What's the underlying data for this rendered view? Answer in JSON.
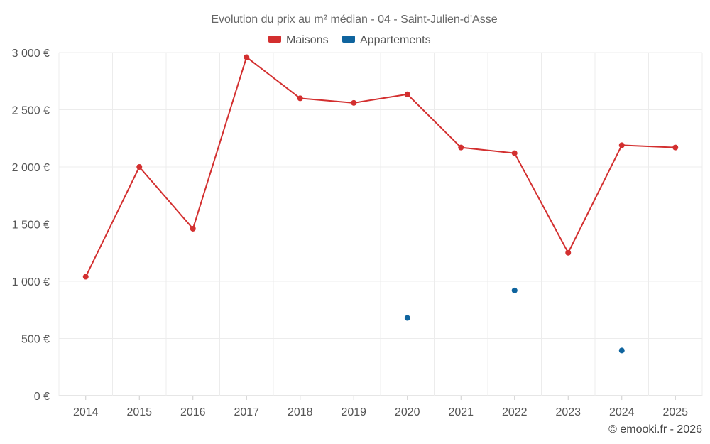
{
  "chart_data": {
    "type": "line",
    "title": "Evolution du prix au m² médian - 04 - Saint-Julien-d'Asse",
    "categories": [
      "2014",
      "2015",
      "2016",
      "2017",
      "2018",
      "2019",
      "2020",
      "2021",
      "2022",
      "2023",
      "2024",
      "2025"
    ],
    "ylim": [
      0,
      3000
    ],
    "yticks": [
      0,
      500,
      1000,
      1500,
      2000,
      2500,
      3000
    ],
    "ytick_labels": [
      "0 €",
      "500 €",
      "1 000 €",
      "1 500 €",
      "2 000 €",
      "2 500 €",
      "3 000 €"
    ],
    "grid": true,
    "legend_position": "top-center",
    "series": [
      {
        "name": "Maisons",
        "color": "#d32f2f",
        "style": "line",
        "values": [
          1040,
          2000,
          1460,
          2960,
          2600,
          2560,
          2635,
          2170,
          2120,
          1250,
          2190,
          2170
        ]
      },
      {
        "name": "Appartements",
        "color": "#0f649e",
        "style": "points",
        "values": [
          null,
          null,
          null,
          null,
          null,
          null,
          680,
          null,
          920,
          null,
          395,
          null
        ]
      }
    ],
    "credit": "© emooki.fr - 2026"
  }
}
